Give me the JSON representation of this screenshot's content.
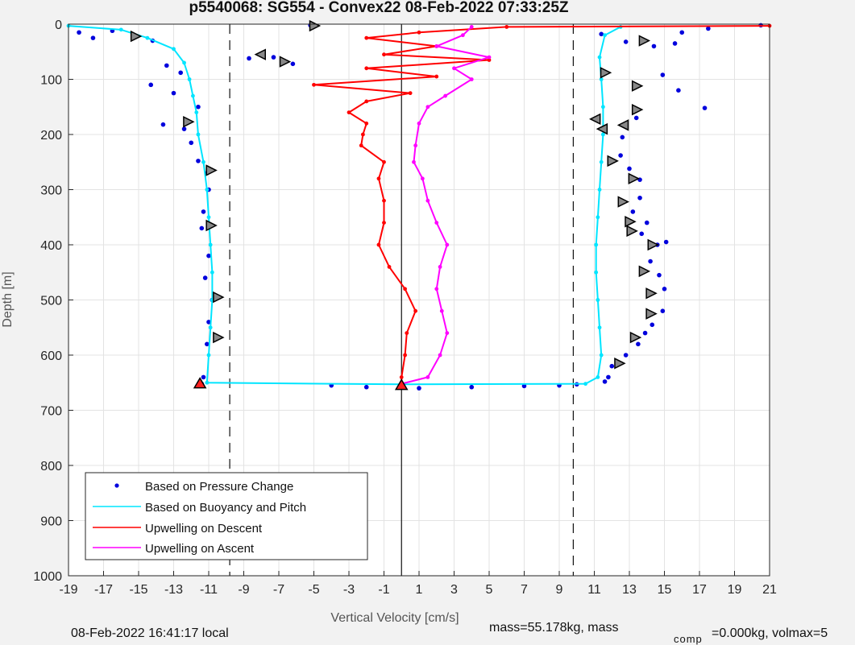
{
  "chart_data": {
    "type": "scatter",
    "title": "p5540068: SG554 - Convex22 08-Feb-2022 07:33:25Z",
    "xlabel": "Vertical Velocity [cm/s]",
    "ylabel": "Depth [m]",
    "xlim": [
      -19,
      21
    ],
    "ylim": [
      0,
      1000
    ],
    "y_reversed": true,
    "x_ticks": [
      -19,
      -17,
      -15,
      -13,
      -11,
      -9,
      -7,
      -5,
      -3,
      -1,
      1,
      3,
      5,
      7,
      9,
      11,
      13,
      15,
      17,
      19,
      21
    ],
    "y_ticks": [
      0,
      100,
      200,
      300,
      400,
      500,
      600,
      700,
      800,
      900,
      1000
    ],
    "grid": true,
    "legend_position": "bottom-left",
    "reference_lines": [
      {
        "x": -9.8,
        "style": "dashed"
      },
      {
        "x": 0,
        "style": "solid"
      },
      {
        "x": 9.8,
        "style": "dashed"
      }
    ],
    "series": [
      {
        "name": "Based on Pressure Change",
        "style": "dots",
        "color": "#0000dd",
        "points": [
          [
            -18.4,
            15
          ],
          [
            -17.6,
            25
          ],
          [
            -16.5,
            12
          ],
          [
            -14.2,
            30
          ],
          [
            -13.4,
            75
          ],
          [
            -12.6,
            88
          ],
          [
            -14.3,
            110
          ],
          [
            -13.0,
            125
          ],
          [
            -11.6,
            150
          ],
          [
            -13.6,
            182
          ],
          [
            -12.4,
            190
          ],
          [
            -12.0,
            215
          ],
          [
            -11.6,
            248
          ],
          [
            -11.1,
            270
          ],
          [
            -11.0,
            300
          ],
          [
            -11.3,
            340
          ],
          [
            -11.4,
            370
          ],
          [
            -11.0,
            420
          ],
          [
            -11.2,
            460
          ],
          [
            -10.8,
            500
          ],
          [
            -11.0,
            540
          ],
          [
            -11.1,
            580
          ],
          [
            -11.3,
            640
          ],
          [
            -11.4,
            652
          ],
          [
            -8.7,
            62
          ],
          [
            -7.3,
            60
          ],
          [
            -6.2,
            72
          ],
          [
            -5.2,
            2
          ],
          [
            -4.0,
            655
          ],
          [
            -2.0,
            658
          ],
          [
            1.0,
            660
          ],
          [
            4.0,
            658
          ],
          [
            7.0,
            656
          ],
          [
            9.0,
            655
          ],
          [
            10.0,
            653
          ],
          [
            11.4,
            18
          ],
          [
            12.8,
            32
          ],
          [
            14.4,
            40
          ],
          [
            15.6,
            35
          ],
          [
            16.0,
            15
          ],
          [
            17.5,
            8
          ],
          [
            20.5,
            2
          ],
          [
            14.9,
            92
          ],
          [
            15.8,
            120
          ],
          [
            17.3,
            152
          ],
          [
            13.4,
            170
          ],
          [
            12.6,
            205
          ],
          [
            12.5,
            238
          ],
          [
            13.0,
            262
          ],
          [
            13.6,
            282
          ],
          [
            13.6,
            315
          ],
          [
            13.2,
            340
          ],
          [
            14.0,
            360
          ],
          [
            13.7,
            380
          ],
          [
            14.6,
            400
          ],
          [
            15.1,
            395
          ],
          [
            14.2,
            430
          ],
          [
            14.7,
            455
          ],
          [
            15.0,
            480
          ],
          [
            14.9,
            520
          ],
          [
            13.9,
            560
          ],
          [
            14.3,
            545
          ],
          [
            13.5,
            580
          ],
          [
            12.8,
            600
          ],
          [
            12.0,
            620
          ],
          [
            11.8,
            640
          ],
          [
            11.6,
            648
          ]
        ]
      },
      {
        "name": "Based on Buoyancy and Pitch",
        "style": "line",
        "color": "#00e5ff",
        "points": [
          [
            -19.0,
            3
          ],
          [
            -16.0,
            10
          ],
          [
            -14.5,
            25
          ],
          [
            -13.0,
            45
          ],
          [
            -12.4,
            70
          ],
          [
            -12.1,
            100
          ],
          [
            -11.9,
            130
          ],
          [
            -11.7,
            160
          ],
          [
            -11.6,
            200
          ],
          [
            -11.3,
            250
          ],
          [
            -11.1,
            300
          ],
          [
            -11.0,
            350
          ],
          [
            -10.9,
            400
          ],
          [
            -10.8,
            450
          ],
          [
            -10.8,
            500
          ],
          [
            -10.9,
            550
          ],
          [
            -11.0,
            600
          ],
          [
            -11.1,
            650
          ],
          [
            0,
            653
          ],
          [
            10.5,
            652
          ],
          [
            11.2,
            640
          ],
          [
            11.4,
            600
          ],
          [
            11.3,
            550
          ],
          [
            11.2,
            500
          ],
          [
            11.1,
            450
          ],
          [
            11.1,
            400
          ],
          [
            11.2,
            350
          ],
          [
            11.3,
            300
          ],
          [
            11.4,
            250
          ],
          [
            11.5,
            200
          ],
          [
            11.5,
            150
          ],
          [
            11.4,
            100
          ],
          [
            11.3,
            60
          ],
          [
            11.6,
            20
          ],
          [
            12.5,
            5
          ]
        ]
      },
      {
        "name": "Upwelling on Descent",
        "style": "line",
        "color": "#ff0000",
        "points": [
          [
            21.0,
            3
          ],
          [
            6.0,
            5
          ],
          [
            1.0,
            15
          ],
          [
            -2.0,
            25
          ],
          [
            2.0,
            40
          ],
          [
            -1.0,
            55
          ],
          [
            5.0,
            65
          ],
          [
            -2.0,
            80
          ],
          [
            2.0,
            95
          ],
          [
            -5.0,
            110
          ],
          [
            0.5,
            125
          ],
          [
            -2.0,
            140
          ],
          [
            -3.0,
            160
          ],
          [
            -2.0,
            180
          ],
          [
            -2.2,
            200
          ],
          [
            -2.3,
            220
          ],
          [
            -1.0,
            250
          ],
          [
            -1.3,
            280
          ],
          [
            -1.0,
            320
          ],
          [
            -1.0,
            360
          ],
          [
            -1.3,
            400
          ],
          [
            -0.7,
            440
          ],
          [
            0.2,
            480
          ],
          [
            0.8,
            520
          ],
          [
            0.3,
            560
          ],
          [
            0.2,
            600
          ],
          [
            0.0,
            640
          ],
          [
            0.0,
            652
          ]
        ]
      },
      {
        "name": "Upwelling on Ascent",
        "style": "line",
        "color": "#ff00ff",
        "points": [
          [
            0.0,
            652
          ],
          [
            1.5,
            640
          ],
          [
            2.2,
            600
          ],
          [
            2.6,
            560
          ],
          [
            2.3,
            520
          ],
          [
            2.0,
            480
          ],
          [
            2.2,
            440
          ],
          [
            2.6,
            400
          ],
          [
            2.0,
            360
          ],
          [
            1.5,
            320
          ],
          [
            1.2,
            280
          ],
          [
            0.7,
            250
          ],
          [
            0.8,
            220
          ],
          [
            1.0,
            180
          ],
          [
            1.5,
            150
          ],
          [
            2.5,
            130
          ],
          [
            4.0,
            100
          ],
          [
            3.0,
            80
          ],
          [
            5.0,
            60
          ],
          [
            2.0,
            40
          ],
          [
            3.5,
            20
          ],
          [
            4.0,
            5
          ]
        ]
      }
    ],
    "markers": [
      {
        "x": -15.2,
        "y": 22,
        "shape": "right",
        "color": "#888888"
      },
      {
        "x": -5.0,
        "y": 3,
        "shape": "right",
        "color": "#888888"
      },
      {
        "x": -8.0,
        "y": 55,
        "shape": "left",
        "color": "#888888"
      },
      {
        "x": -6.7,
        "y": 68,
        "shape": "right",
        "color": "#888888"
      },
      {
        "x": -12.2,
        "y": 177,
        "shape": "right",
        "color": "#888888"
      },
      {
        "x": -10.9,
        "y": 265,
        "shape": "right",
        "color": "#888888"
      },
      {
        "x": -10.9,
        "y": 365,
        "shape": "right",
        "color": "#888888"
      },
      {
        "x": -10.5,
        "y": 495,
        "shape": "right",
        "color": "#888888"
      },
      {
        "x": -10.5,
        "y": 568,
        "shape": "right",
        "color": "#888888"
      },
      {
        "x": -11.5,
        "y": 652,
        "shape": "up",
        "color": "#ff2020"
      },
      {
        "x": 0.0,
        "y": 655,
        "shape": "up",
        "color": "#ff2020"
      },
      {
        "x": 13.8,
        "y": 30,
        "shape": "right",
        "color": "#888888"
      },
      {
        "x": 11.6,
        "y": 88,
        "shape": "right",
        "color": "#888888"
      },
      {
        "x": 13.4,
        "y": 112,
        "shape": "right",
        "color": "#888888"
      },
      {
        "x": 13.4,
        "y": 155,
        "shape": "right",
        "color": "#888888"
      },
      {
        "x": 11.1,
        "y": 172,
        "shape": "left",
        "color": "#888888"
      },
      {
        "x": 12.7,
        "y": 183,
        "shape": "left",
        "color": "#888888"
      },
      {
        "x": 11.5,
        "y": 190,
        "shape": "left",
        "color": "#888888"
      },
      {
        "x": 12.0,
        "y": 248,
        "shape": "right",
        "color": "#888888"
      },
      {
        "x": 13.2,
        "y": 280,
        "shape": "right",
        "color": "#888888"
      },
      {
        "x": 12.6,
        "y": 322,
        "shape": "right",
        "color": "#888888"
      },
      {
        "x": 13.0,
        "y": 358,
        "shape": "right",
        "color": "#888888"
      },
      {
        "x": 13.1,
        "y": 375,
        "shape": "right",
        "color": "#888888"
      },
      {
        "x": 14.3,
        "y": 400,
        "shape": "right",
        "color": "#888888"
      },
      {
        "x": 13.8,
        "y": 448,
        "shape": "right",
        "color": "#888888"
      },
      {
        "x": 14.2,
        "y": 488,
        "shape": "right",
        "color": "#888888"
      },
      {
        "x": 14.2,
        "y": 525,
        "shape": "right",
        "color": "#888888"
      },
      {
        "x": 13.3,
        "y": 568,
        "shape": "right",
        "color": "#888888"
      },
      {
        "x": 12.4,
        "y": 615,
        "shape": "right",
        "color": "#888888"
      }
    ]
  },
  "footer": {
    "local_time": "08-Feb-2022 16:41:17 local",
    "mass_text": "mass=55.178kg, mass",
    "comp_subscript": "comp",
    "comp_text": "=0.000kg, volmax=5"
  }
}
